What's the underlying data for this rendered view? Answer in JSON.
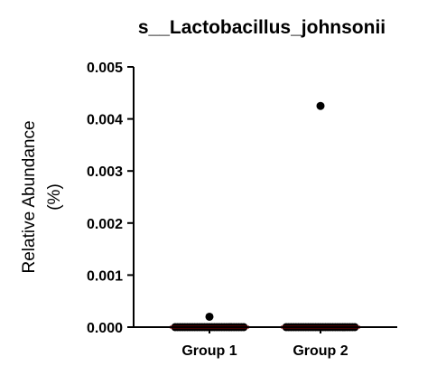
{
  "chart_data": {
    "type": "scatter",
    "title": "s__Lactobacillus_johnsonii",
    "ylabel_line1": "Relative Abundance",
    "ylabel_line2": "(%)",
    "xlabel": "",
    "ylim": [
      0,
      0.005
    ],
    "y_ticks": [
      {
        "value": 0,
        "label": "0.000"
      },
      {
        "value": 0.001,
        "label": "0.001"
      },
      {
        "value": 0.002,
        "label": "0.002"
      },
      {
        "value": 0.003,
        "label": "0.003"
      },
      {
        "value": 0.004,
        "label": "0.004"
      },
      {
        "value": 0.005,
        "label": "0.005"
      }
    ],
    "categories": [
      "Group 1",
      "Group 2"
    ],
    "groups": [
      {
        "label": "Group 1",
        "points": [
          0.0002,
          0,
          0,
          0,
          0,
          0,
          0,
          0,
          0,
          0,
          0,
          0,
          0,
          0,
          0,
          0,
          0,
          0,
          0,
          0,
          0,
          0,
          0,
          0,
          0,
          0,
          0,
          0,
          0,
          0
        ],
        "median": 0
      },
      {
        "label": "Group 2",
        "points": [
          0.00425,
          0,
          0,
          0,
          0,
          0,
          0,
          0,
          0,
          0,
          0,
          0,
          0,
          0,
          0,
          0,
          0,
          0,
          0,
          0,
          0,
          0,
          0,
          0,
          0,
          0,
          0,
          0,
          0,
          0
        ],
        "median": 0
      }
    ],
    "point_color": "#000000",
    "median_color": "#8b0000",
    "grid": false,
    "legend": "none"
  }
}
